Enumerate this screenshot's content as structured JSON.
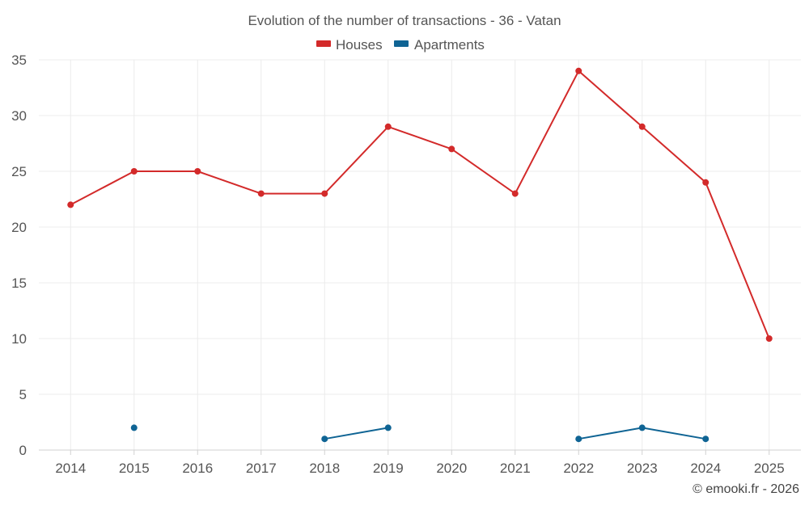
{
  "chart_data": {
    "type": "line",
    "title": "Evolution of the number of transactions - 36 - Vatan",
    "categories": [
      "2014",
      "2015",
      "2016",
      "2017",
      "2018",
      "2019",
      "2020",
      "2021",
      "2022",
      "2023",
      "2024",
      "2025"
    ],
    "series": [
      {
        "name": "Houses",
        "color": "#d32a2a",
        "values": [
          22,
          25,
          25,
          23,
          23,
          29,
          27,
          23,
          34,
          29,
          24,
          10
        ]
      },
      {
        "name": "Apartments",
        "color": "#0f6494",
        "values": [
          null,
          2,
          null,
          null,
          1,
          2,
          null,
          null,
          1,
          2,
          1,
          null
        ]
      }
    ],
    "yticks": [
      "0",
      "5",
      "10",
      "15",
      "20",
      "25",
      "30",
      "35"
    ],
    "ylim": [
      0,
      35
    ],
    "xlabel": "",
    "ylabel": "",
    "grid": true,
    "legend": "top-center"
  },
  "credit": "© emooki.fr - 2026"
}
